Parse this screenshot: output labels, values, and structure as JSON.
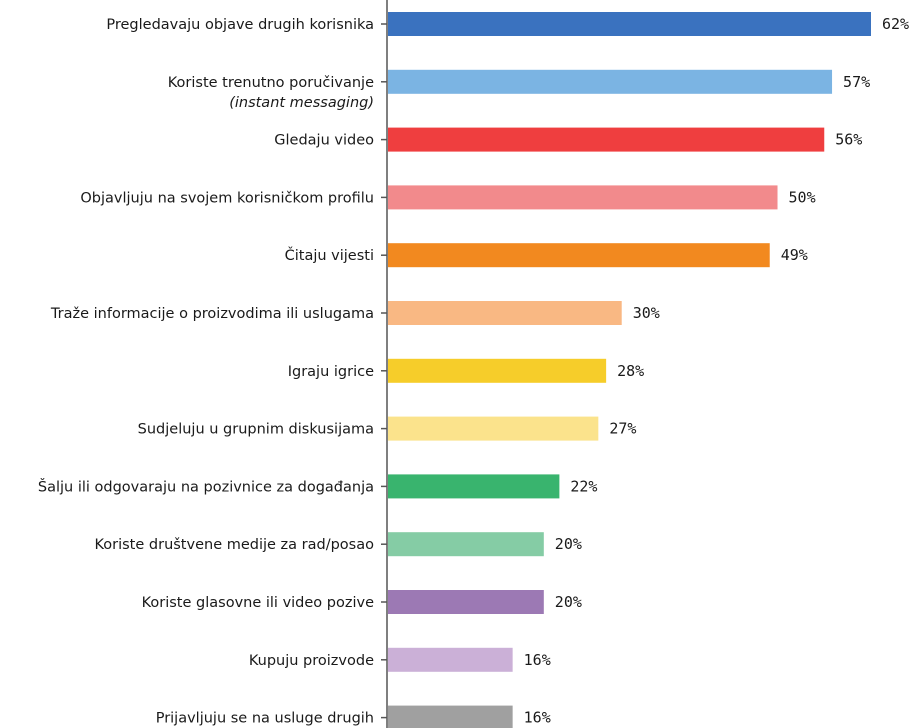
{
  "chart_data": {
    "type": "bar",
    "orientation": "horizontal",
    "value_suffix": "%",
    "grid": false,
    "legend": "none",
    "categories": [
      "Pregledavaju objave drugih korisnika",
      "Koriste trenutno poručivanje",
      "Gledaju video",
      "Objavljuju na svojem korisničkom profilu",
      "Čitaju vijesti",
      "Traže informacije o proizvodima ili uslugama",
      "Igraju igrice",
      "Sudjeluju u grupnim diskusijama",
      "Šalju ili odgovaraju na pozivnice za događanja",
      "Koriste društvene medije za rad/posao",
      "Koriste glasovne ili video pozive",
      "Kupuju proizvode",
      "Prijavljuju se na usluge drugih"
    ],
    "category_sublabels": [
      "",
      "(instant messaging)",
      "",
      "",
      "",
      "",
      "",
      "",
      "",
      "",
      "",
      "",
      ""
    ],
    "values": [
      62,
      57,
      56,
      50,
      49,
      30,
      28,
      27,
      22,
      20,
      20,
      16,
      16
    ],
    "value_labels": [
      "62%",
      "57%",
      "56%",
      "50%",
      "49%",
      "30%",
      "28%",
      "27%",
      "22%",
      "20%",
      "20%",
      "16%",
      "16%"
    ],
    "colors": [
      "#3a72bf",
      "#7bb4e3",
      "#ef3e3f",
      "#f28a8c",
      "#f2891f",
      "#f9b883",
      "#f6cd2a",
      "#fbe38c",
      "#39b46e",
      "#85cca5",
      "#9c79b4",
      "#cbb0d7",
      "#a0a0a0"
    ],
    "axis_color": "#555555"
  }
}
